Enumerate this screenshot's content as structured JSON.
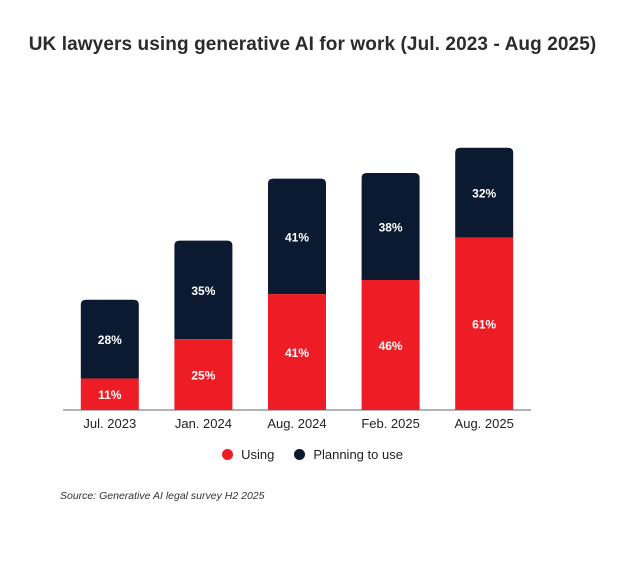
{
  "chart_data": {
    "type": "bar",
    "stacked": true,
    "title": "UK lawyers using generative AI for work (Jul. 2023 - Aug 2025)",
    "categories": [
      "Jul. 2023",
      "Jan. 2024",
      "Aug. 2024",
      "Feb. 2025",
      "Aug. 2025"
    ],
    "series": [
      {
        "name": "Using",
        "values": [
          11,
          25,
          41,
          46,
          61
        ],
        "labels": [
          "11%",
          "25%",
          "41%",
          "46%",
          "61%"
        ],
        "color": "#ee1c25"
      },
      {
        "name": "Planning to use",
        "values": [
          28,
          35,
          41,
          38,
          32
        ],
        "labels": [
          "28%",
          "35%",
          "41%",
          "38%",
          "32%"
        ],
        "color": "#0b1a30"
      }
    ],
    "ylim": [
      0,
      100
    ],
    "grid": false,
    "legend_position": "bottom"
  },
  "source": "Source: Generative AI legal survey H2 2025"
}
